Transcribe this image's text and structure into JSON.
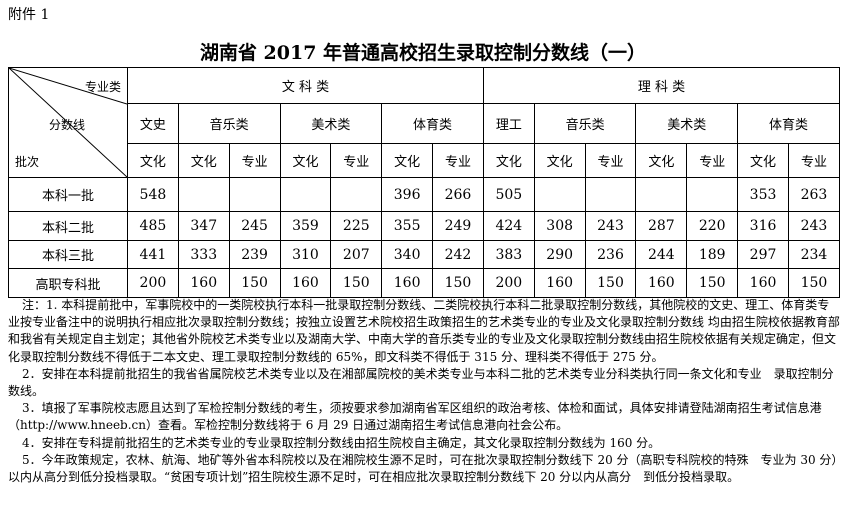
{
  "header": {
    "attachment": "附件 1",
    "title": "湖南省 2017 年普通高校招生录取控制分数线（一）"
  },
  "table": {
    "corner": {
      "top": "专业类",
      "middle": "分数线",
      "bottom": "批次"
    },
    "groups": [
      "文 科 类",
      "理 科 类"
    ],
    "subjects": [
      {
        "label": "文史",
        "span": 1
      },
      {
        "label": "音乐类",
        "span": 2
      },
      {
        "label": "美术类",
        "span": 2
      },
      {
        "label": "体育类",
        "span": 2
      },
      {
        "label": "理工",
        "span": 1
      },
      {
        "label": "音乐类",
        "span": 2
      },
      {
        "label": "美术类",
        "span": 2
      },
      {
        "label": "体育类",
        "span": 2
      }
    ],
    "sub_headers": [
      "文化",
      "文化",
      "专业",
      "文化",
      "专业",
      "文化",
      "专业",
      "文化",
      "文化",
      "专业",
      "文化",
      "专业",
      "文化",
      "专业"
    ],
    "rows": [
      {
        "label": "本科一批",
        "values": [
          548,
          null,
          null,
          null,
          null,
          396,
          266,
          505,
          null,
          null,
          null,
          null,
          353,
          263
        ]
      },
      {
        "label": "本科二批",
        "values": [
          485,
          347,
          245,
          359,
          225,
          355,
          249,
          424,
          308,
          243,
          287,
          220,
          316,
          243
        ]
      },
      {
        "label": "本科三批",
        "values": [
          441,
          333,
          239,
          310,
          207,
          340,
          242,
          383,
          290,
          236,
          244,
          189,
          297,
          234
        ]
      },
      {
        "label": "高职专科批",
        "values": [
          200,
          160,
          150,
          160,
          150,
          160,
          150,
          200,
          160,
          150,
          160,
          150,
          160,
          150
        ]
      }
    ]
  },
  "notes": [
    "注：1. 本科提前批中，军事院校中的一类院校执行本科一批录取控制分数线、二类院校执行本科二批录取控制分数线，其他院校的文史、理工、体育类专业按专业备注中的说明执行相应批次录取控制分数线；按独立设置艺术院校招生政策招生的艺术类专业的专业及文化录取控制分数线 均由招生院校依据教育部和我省有关规定自主划定；其他省外院校艺术类专业以及湖南大学、中南大学的音乐类专业的专业及文化录取控制分数线由招生院校依据有关规定确定，但文化录取控制分数线不得低于二本文史、理工录取控制分数线的 65%，即文科类不得低于 315 分、理科类不得低于 275 分。",
    "2．安排在本科提前批招生的我省省属院校艺术类专业以及在湘部属院校的美术类专业与本科二批的艺术类专业分科类执行同一条文化和专业　录取控制分数线。",
    "3．填报了军事院校志愿且达到了军检控制分数线的考生，须按要求参加湖南省军区组织的政治考核、体检和面试，具体安排请登陆湖南招生考试信息港（http://www.hneeb.cn）查看。军检控制分数线将于 6 月 29 日通过湖南招生考试信息港向社会公布。",
    "4．安排在专科提前批招生的艺术类专业的专业录取控制分数线由招生院校自主确定，其文化录取控制分数线为 160 分。",
    "5．今年政策规定，农林、航海、地矿等外省本科院校以及在湘院校生源不足时，可在批次录取控制分数线下 20 分（高职专科院校的特殊　专业为 30 分）以内从高分到低分投档录取。“贫困专项计划”招生院校生源不足时，可在相应批次录取控制分数线下 20 分以内从高分　到低分投档录取。"
  ]
}
